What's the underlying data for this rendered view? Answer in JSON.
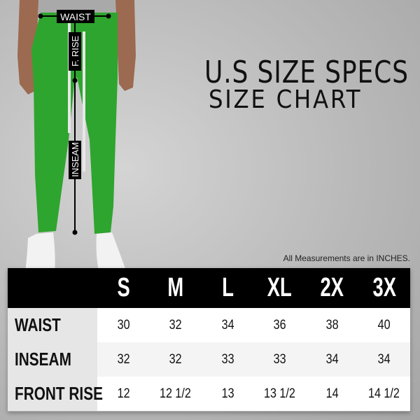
{
  "title": "U.S SIZE SPECS",
  "subtitle": "SIZE CHART",
  "note": "All Measurements are in INCHES.",
  "figure": {
    "labels": {
      "waist": "WAIST",
      "front_rise": "F. RISE",
      "inseam": "INSEAM"
    },
    "pants_color": "#2ea52e"
  },
  "table": {
    "sizes": [
      "S",
      "M",
      "L",
      "XL",
      "2X",
      "3X"
    ],
    "rows": [
      {
        "label": "WAIST",
        "values": [
          "30",
          "32",
          "34",
          "36",
          "38",
          "40"
        ]
      },
      {
        "label": "INSEAM",
        "values": [
          "32",
          "32",
          "33",
          "33",
          "34",
          "34"
        ]
      },
      {
        "label": "FRONT RISE",
        "values": [
          "12",
          "12 1/2",
          "13",
          "13 1/2",
          "14",
          "14 1/2"
        ]
      }
    ]
  }
}
